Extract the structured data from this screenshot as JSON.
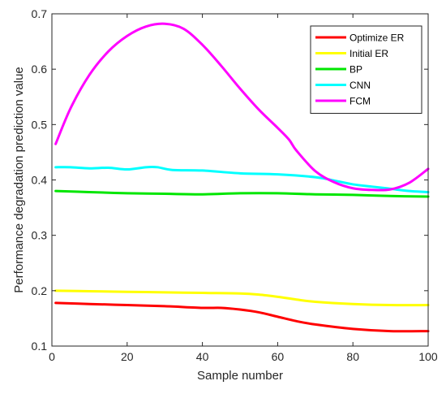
{
  "chart_data": {
    "type": "line",
    "title": "",
    "xlabel": "Sample number",
    "ylabel": "Performance degradation prediction value",
    "xlim": [
      0,
      100
    ],
    "ylim": [
      0.1,
      0.7
    ],
    "xticks": [
      0,
      20,
      40,
      60,
      80,
      100
    ],
    "yticks": [
      0.1,
      0.2,
      0.3,
      0.4,
      0.5,
      0.6,
      0.7
    ],
    "grid": false,
    "legend_position": "top-right",
    "series": [
      {
        "name": "Optimize ER",
        "color": "#ff0000",
        "points": [
          [
            1,
            0.178
          ],
          [
            10,
            0.176
          ],
          [
            20,
            0.174
          ],
          [
            30,
            0.172
          ],
          [
            40,
            0.169
          ],
          [
            45,
            0.169
          ],
          [
            50,
            0.166
          ],
          [
            55,
            0.161
          ],
          [
            60,
            0.153
          ],
          [
            65,
            0.145
          ],
          [
            70,
            0.139
          ],
          [
            80,
            0.131
          ],
          [
            90,
            0.127
          ],
          [
            100,
            0.127
          ]
        ]
      },
      {
        "name": "Initial ER",
        "color": "#ffff00",
        "points": [
          [
            1,
            0.2
          ],
          [
            10,
            0.199
          ],
          [
            20,
            0.198
          ],
          [
            30,
            0.197
          ],
          [
            40,
            0.196
          ],
          [
            50,
            0.195
          ],
          [
            55,
            0.193
          ],
          [
            60,
            0.189
          ],
          [
            65,
            0.184
          ],
          [
            70,
            0.18
          ],
          [
            80,
            0.176
          ],
          [
            90,
            0.174
          ],
          [
            100,
            0.174
          ]
        ]
      },
      {
        "name": "BP",
        "color": "#00e600",
        "points": [
          [
            1,
            0.38
          ],
          [
            10,
            0.378
          ],
          [
            20,
            0.376
          ],
          [
            30,
            0.375
          ],
          [
            40,
            0.374
          ],
          [
            50,
            0.376
          ],
          [
            60,
            0.376
          ],
          [
            70,
            0.374
          ],
          [
            80,
            0.373
          ],
          [
            90,
            0.371
          ],
          [
            100,
            0.37
          ]
        ]
      },
      {
        "name": "CNN",
        "color": "#00ffff",
        "points": [
          [
            1,
            0.423
          ],
          [
            5,
            0.423
          ],
          [
            10,
            0.421
          ],
          [
            15,
            0.422
          ],
          [
            20,
            0.419
          ],
          [
            25,
            0.423
          ],
          [
            28,
            0.423
          ],
          [
            32,
            0.418
          ],
          [
            40,
            0.417
          ],
          [
            50,
            0.412
          ],
          [
            60,
            0.41
          ],
          [
            70,
            0.405
          ],
          [
            75,
            0.399
          ],
          [
            80,
            0.392
          ],
          [
            85,
            0.388
          ],
          [
            90,
            0.384
          ],
          [
            95,
            0.38
          ],
          [
            100,
            0.378
          ]
        ]
      },
      {
        "name": "FCM",
        "color": "#ff00ff",
        "points": [
          [
            1,
            0.465
          ],
          [
            5,
            0.53
          ],
          [
            10,
            0.59
          ],
          [
            15,
            0.632
          ],
          [
            20,
            0.66
          ],
          [
            25,
            0.677
          ],
          [
            30,
            0.682
          ],
          [
            35,
            0.673
          ],
          [
            40,
            0.644
          ],
          [
            45,
            0.606
          ],
          [
            50,
            0.565
          ],
          [
            55,
            0.527
          ],
          [
            60,
            0.494
          ],
          [
            63,
            0.473
          ],
          [
            65,
            0.453
          ],
          [
            70,
            0.416
          ],
          [
            75,
            0.396
          ],
          [
            80,
            0.385
          ],
          [
            85,
            0.382
          ],
          [
            90,
            0.383
          ],
          [
            95,
            0.395
          ],
          [
            100,
            0.42
          ]
        ]
      }
    ]
  }
}
